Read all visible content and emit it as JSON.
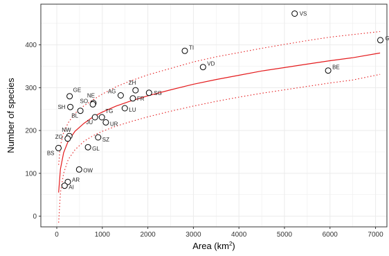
{
  "chart_data": {
    "type": "scatter",
    "title": "",
    "xlabel": "Area (km",
    "xlabel_superscript": "2",
    "xlabel_suffix": ")",
    "ylabel": "Number of species",
    "xlim": [
      -350,
      7250
    ],
    "ylim": [
      -25,
      495
    ],
    "x_ticks": [
      0,
      1000,
      2000,
      3000,
      4000,
      5000,
      6000,
      7000
    ],
    "y_ticks": [
      0,
      100,
      200,
      300,
      400
    ],
    "grid": true,
    "points": [
      {
        "label": "VS",
        "x": 5224,
        "y": 473
      },
      {
        "label": "GR",
        "x": 7105,
        "y": 411
      },
      {
        "label": "TI",
        "x": 2812,
        "y": 386
      },
      {
        "label": "VD",
        "x": 3212,
        "y": 348
      },
      {
        "label": "BE",
        "x": 5959,
        "y": 340
      },
      {
        "label": "ZH",
        "x": 1729,
        "y": 294
      },
      {
        "label": "AG",
        "x": 1404,
        "y": 282
      },
      {
        "label": "SG",
        "x": 2026,
        "y": 288
      },
      {
        "label": "FR",
        "x": 1670,
        "y": 275
      },
      {
        "label": "GE",
        "x": 282,
        "y": 280
      },
      {
        "label": "NE",
        "x": 803,
        "y": 264
      },
      {
        "label": "SO",
        "x": 791,
        "y": 261
      },
      {
        "label": "SH",
        "x": 298,
        "y": 255
      },
      {
        "label": "BL",
        "x": 518,
        "y": 246
      },
      {
        "label": "LU",
        "x": 1493,
        "y": 252
      },
      {
        "label": "TG",
        "x": 991,
        "y": 231
      },
      {
        "label": "JU",
        "x": 838,
        "y": 231
      },
      {
        "label": "UR",
        "x": 1077,
        "y": 219
      },
      {
        "label": "NW",
        "x": 276,
        "y": 187
      },
      {
        "label": "ZG",
        "x": 239,
        "y": 181
      },
      {
        "label": "SZ",
        "x": 908,
        "y": 184
      },
      {
        "label": "GL",
        "x": 685,
        "y": 161
      },
      {
        "label": "BS",
        "x": 37,
        "y": 159
      },
      {
        "label": "OW",
        "x": 491,
        "y": 109
      },
      {
        "label": "AR",
        "x": 243,
        "y": 80
      },
      {
        "label": "AI",
        "x": 172,
        "y": 71
      }
    ],
    "fit": {
      "name": "",
      "x": [
        40,
        80,
        150,
        250,
        400,
        600,
        800,
        1000,
        1300,
        1600,
        2000,
        2500,
        3000,
        3500,
        4000,
        4500,
        5000,
        5500,
        6000,
        6500,
        7100
      ],
      "y": [
        55,
        110,
        148,
        175,
        198,
        217,
        232,
        243,
        257,
        268,
        281,
        295,
        308,
        319,
        329,
        339,
        347,
        355,
        363,
        370,
        381
      ]
    },
    "fit_upper": {
      "x": [
        40,
        80,
        150,
        250,
        400,
        600,
        800,
        1000,
        1300,
        1600,
        2000,
        2500,
        3000,
        3500,
        4000,
        4500,
        5000,
        5500,
        6000,
        6500,
        7100
      ],
      "y": [
        120,
        165,
        195,
        218,
        240,
        258,
        272,
        285,
        302,
        315,
        330,
        345,
        360,
        372,
        382,
        392,
        401,
        410,
        418,
        424,
        431
      ]
    },
    "fit_lower": {
      "x": [
        40,
        80,
        150,
        250,
        400,
        600,
        800,
        1000,
        1300,
        1600,
        2000,
        2500,
        3000,
        3500,
        4000,
        4500,
        5000,
        5500,
        6000,
        6500,
        7100
      ],
      "y": [
        -15,
        55,
        100,
        132,
        155,
        175,
        188,
        198,
        210,
        220,
        232,
        245,
        257,
        268,
        278,
        287,
        295,
        303,
        311,
        318,
        331
      ]
    },
    "colors": {
      "fit_line": "#e41a1c",
      "points": "#000000",
      "grid": "#ebebeb",
      "panel_border": "#333333"
    }
  }
}
